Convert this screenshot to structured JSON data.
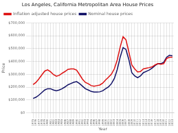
{
  "chart_data": {
    "type": "line",
    "title": "Los Angeles, California Metropolitan Area House Prices",
    "xlabel": "Year",
    "ylabel": "Price",
    "x": [
      1975,
      1976,
      1977,
      1978,
      1979,
      1980,
      1981,
      1982,
      1983,
      1984,
      1985,
      1986,
      1987,
      1988,
      1989,
      1990,
      1991,
      1992,
      1993,
      1994,
      1995,
      1996,
      1997,
      1998,
      1999,
      2000,
      2001,
      2002,
      2003,
      2004,
      2005,
      2006,
      2007,
      2008,
      2009,
      2010,
      2011,
      2012,
      2013,
      2014,
      2015,
      2016,
      2017,
      2018,
      2019,
      2020,
      2021,
      2022,
      2023
    ],
    "series": [
      {
        "name": "Inflation adjusted house prices",
        "color": "#dd1111",
        "values": [
          220000,
          237000,
          265000,
          295000,
          325000,
          335000,
          320000,
          298000,
          285000,
          292000,
          308000,
          322000,
          338000,
          342000,
          342000,
          332000,
          298000,
          262000,
          237000,
          227000,
          212000,
          207000,
          212000,
          217000,
          232000,
          257000,
          278000,
          302000,
          343000,
          413000,
          512000,
          593000,
          568000,
          473000,
          373000,
          342000,
          318000,
          322000,
          342000,
          347000,
          352000,
          358000,
          373000,
          383000,
          378000,
          383000,
          423000,
          433000,
          433000
        ]
      },
      {
        "name": "Nominal house prices",
        "color": "#111166",
        "values": [
          112000,
          122000,
          138000,
          158000,
          178000,
          188000,
          188000,
          178000,
          172000,
          178000,
          188000,
          202000,
          218000,
          228000,
          238000,
          243000,
          228000,
          208000,
          188000,
          178000,
          167000,
          162000,
          162000,
          164000,
          172000,
          188000,
          202000,
          228000,
          268000,
          338000,
          433000,
          508000,
          493000,
          413000,
          313000,
          288000,
          273000,
          288000,
          313000,
          323000,
          333000,
          348000,
          368000,
          383000,
          383000,
          393000,
          433000,
          448000,
          443000
        ]
      }
    ],
    "xlim": [
      1974.5,
      2023.5
    ],
    "xticks": [
      1975,
      1976,
      1977,
      1978,
      1979,
      1980,
      1981,
      1982,
      1983,
      1984,
      1985,
      1986,
      1987,
      1988,
      1989,
      1990,
      1991,
      1992,
      1993,
      1994,
      1995,
      1996,
      1997,
      1998,
      1999,
      2000,
      2001,
      2002,
      2003,
      2004,
      2005,
      2006,
      2007,
      2008,
      2009,
      2010,
      2011,
      2012,
      2013,
      2014,
      2015,
      2016,
      2017,
      2018,
      2019,
      2020,
      2021,
      2022,
      2023
    ],
    "ylim": [
      0,
      700000
    ],
    "yticks": [
      {
        "value": 0,
        "label": "$0"
      },
      {
        "value": 100000,
        "label": "$100,000"
      },
      {
        "value": 200000,
        "label": "$200,000"
      },
      {
        "value": 300000,
        "label": "$300,000"
      },
      {
        "value": 400000,
        "label": "$400,000"
      },
      {
        "value": 500000,
        "label": "$500,000"
      },
      {
        "value": 600000,
        "label": "$600,000"
      },
      {
        "value": 700000,
        "label": "$700,000"
      }
    ],
    "grid": true,
    "legend": "upper left"
  }
}
